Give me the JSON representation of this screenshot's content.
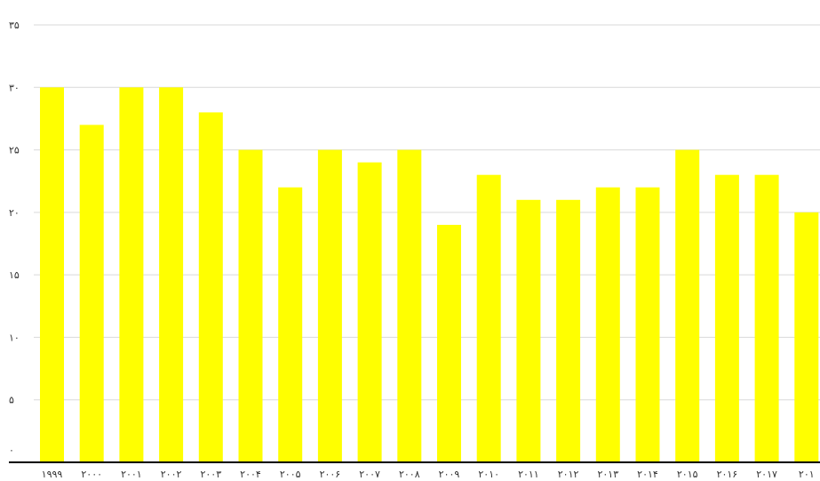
{
  "chart_data": {
    "type": "bar",
    "categories": [
      "۱۹۹۹",
      "۲۰۰۰",
      "۲۰۰۱",
      "۲۰۰۲",
      "۲۰۰۳",
      "۲۰۰۴",
      "۲۰۰۵",
      "۲۰۰۶",
      "۲۰۰۷",
      "۲۰۰۸",
      "۲۰۰۹",
      "۲۰۱۰",
      "۲۰۱۱",
      "۲۰۱۲",
      "۲۰۱۳",
      "۲۰۱۴",
      "۲۰۱۵",
      "۲۰۱۶",
      "۲۰۱۷",
      "۲۰۱"
    ],
    "values": [
      30,
      27,
      30,
      30,
      28,
      25,
      22,
      25,
      24,
      25,
      19,
      23,
      21,
      21,
      22,
      22,
      25,
      23,
      23,
      20
    ],
    "y_ticks": [
      0,
      5,
      10,
      15,
      20,
      25,
      30,
      35
    ],
    "y_tick_labels": [
      "۰",
      "۵",
      "۱۰",
      "۱۵",
      "۲۰",
      "۲۵",
      "۳۰",
      "۳۵"
    ],
    "ylim": [
      0,
      35
    ],
    "title": "",
    "xlabel": "",
    "ylabel": "",
    "grid": true,
    "legend": "none",
    "bar_color": "#ffff00"
  }
}
